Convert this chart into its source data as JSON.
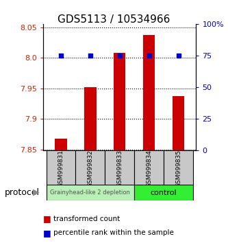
{
  "title": "GDS5113 / 10534966",
  "samples": [
    "GSM999831",
    "GSM999832",
    "GSM999833",
    "GSM999834",
    "GSM999835"
  ],
  "red_values": [
    7.868,
    7.952,
    8.008,
    8.037,
    7.937
  ],
  "blue_values": [
    75,
    75,
    75,
    75,
    75
  ],
  "ylim_left": [
    7.848,
    8.055
  ],
  "ylim_right": [
    0,
    100
  ],
  "yticks_left": [
    7.85,
    7.9,
    7.95,
    8.0,
    8.05
  ],
  "yticks_right": [
    0,
    25,
    50,
    75,
    100
  ],
  "ytick_labels_right": [
    "0",
    "25",
    "50",
    "75",
    "100%"
  ],
  "bar_baseline": 7.848,
  "group1_samples": [
    0,
    1,
    2
  ],
  "group2_samples": [
    3,
    4
  ],
  "group1_label": "Grainyhead-like 2 depletion",
  "group2_label": "control",
  "group1_color": "#b8f0b8",
  "group2_color": "#33ee33",
  "bar_color": "#cc0000",
  "dot_color": "#0000cc",
  "protocol_label": "protocol",
  "legend_red": "transformed count",
  "legend_blue": "percentile rank within the sample",
  "title_fontsize": 11,
  "axis_label_color_left": "#cc2200",
  "axis_label_color_right": "#0000cc",
  "label_box_color": "#c8c8c8"
}
